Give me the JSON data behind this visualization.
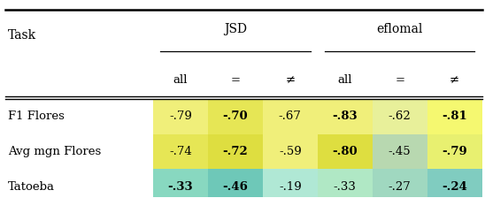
{
  "rows": [
    "F1 Flores",
    "Avg mgn Flores",
    "Tatoeba"
  ],
  "col_groups": [
    "JSD",
    "eflomal"
  ],
  "sub_cols": [
    "all",
    "=",
    "≠"
  ],
  "values": [
    [
      -0.79,
      -0.7,
      -0.67,
      -0.83,
      -0.62,
      -0.81
    ],
    [
      -0.74,
      -0.72,
      -0.59,
      -0.8,
      -0.45,
      -0.79
    ],
    [
      -0.33,
      -0.46,
      -0.19,
      -0.33,
      -0.27,
      -0.24
    ]
  ],
  "bold": [
    [
      false,
      true,
      false,
      true,
      false,
      true
    ],
    [
      false,
      true,
      false,
      true,
      false,
      true
    ],
    [
      true,
      true,
      false,
      false,
      false,
      true
    ]
  ],
  "cell_colors": [
    [
      "#f0ef7a",
      "#e6e655",
      "#f0ef7a",
      "#f0ef7a",
      "#e8f09a",
      "#f5f870"
    ],
    [
      "#e6e655",
      "#dede40",
      "#f0ef7a",
      "#dede40",
      "#b8d8b0",
      "#e8f070"
    ],
    [
      "#88d8c0",
      "#6ec8b8",
      "#b0e8d5",
      "#b0e8c5",
      "#a0d8c0",
      "#80ccc0"
    ]
  ],
  "bg_color": "#ffffff",
  "fig_width": 5.48,
  "fig_height": 2.24
}
